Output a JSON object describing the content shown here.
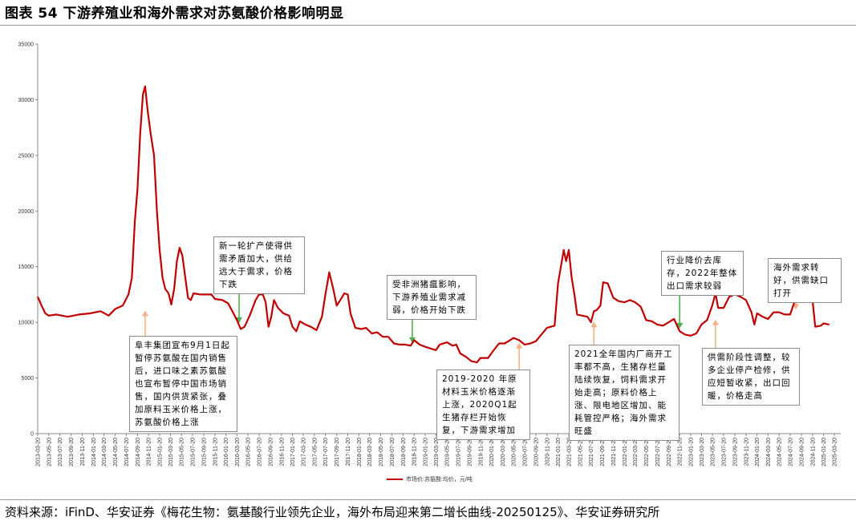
{
  "title": "图表 54 下游养殖业和海外需求对苏氨酸价格影响明显",
  "source": "资料来源：iFinD、华安证券《梅花生物：氨基酸行业领先企业，海外布局迎来第二增长曲线-20250125》、华安证券研究所",
  "chart_data": {
    "type": "line",
    "title": "",
    "xlabel": "",
    "ylabel": "",
    "ylim": [
      0,
      35000
    ],
    "yticks": [
      "0",
      "5000",
      "10000",
      "15000",
      "20000",
      "25000",
      "30000",
      "35000"
    ],
    "xticks": [
      "2013-03-20",
      "2013-05-20",
      "2013-07-20",
      "2013-09-20",
      "2013-11-20",
      "2014-01-20",
      "2014-03-20",
      "2014-05-20",
      "2014-07-20",
      "2014-09-20",
      "2014-11-20",
      "2015-01-20",
      "2015-03-20",
      "2015-05-20",
      "2015-07-20",
      "2015-09-20",
      "2015-11-20",
      "2016-01-20",
      "2016-03-20",
      "2016-05-20",
      "2016-07-20",
      "2016-09-20",
      "2016-11-20",
      "2017-01-20",
      "2017-03-20",
      "2017-05-20",
      "2017-07-20",
      "2017-09-20",
      "2017-11-20",
      "2018-01-20",
      "2018-03-20",
      "2018-05-20",
      "2018-07-20",
      "2018-09-20",
      "2018-11-20",
      "2019-01-20",
      "2019-03-20",
      "2019-05-20",
      "2019-07-20",
      "2019-09-20",
      "2019-11-20",
      "2020-01-20",
      "2020-03-20",
      "2020-05-20",
      "2020-07-20",
      "2020-09-20",
      "2020-11-20",
      "2021-01-20",
      "2021-03-20",
      "2021-05-20",
      "2021-07-20",
      "2021-09-20",
      "2021-11-20",
      "2022-01-20",
      "2022-03-20",
      "2022-05-20",
      "2022-07-20",
      "2022-09-20",
      "2022-11-20",
      "2023-01-20",
      "2023-03-20",
      "2023-05-20",
      "2023-07-20",
      "2023-09-20",
      "2023-11-20",
      "2024-01-20",
      "2024-03-20",
      "2024-05-20",
      "2024-07-20",
      "2024-09-20",
      "2024-11-20",
      "2025-01-20",
      "2025-03-20"
    ],
    "grid": false,
    "legend_position": "bottom",
    "series": [
      {
        "name": "市场价:苏氨酸:均价，元/吨",
        "color": "#c00000",
        "points": [
          [
            "2013-03-20",
            12300
          ],
          [
            "2013-04-10",
            11500
          ],
          [
            "2013-05-01",
            10800
          ],
          [
            "2013-05-20",
            10600
          ],
          [
            "2013-07-01",
            10700
          ],
          [
            "2013-09-01",
            10500
          ],
          [
            "2013-11-01",
            10700
          ],
          [
            "2014-01-01",
            10800
          ],
          [
            "2014-03-01",
            11000
          ],
          [
            "2014-04-15",
            10600
          ],
          [
            "2014-05-20",
            11200
          ],
          [
            "2014-07-01",
            11500
          ],
          [
            "2014-08-01",
            12500
          ],
          [
            "2014-08-20",
            14000
          ],
          [
            "2014-09-05",
            19000
          ],
          [
            "2014-09-20",
            22000
          ],
          [
            "2014-10-05",
            27000
          ],
          [
            "2014-10-20",
            30500
          ],
          [
            "2014-11-01",
            31200
          ],
          [
            "2014-11-15",
            29000
          ],
          [
            "2014-12-01",
            27000
          ],
          [
            "2014-12-20",
            25000
          ],
          [
            "2015-01-05",
            20000
          ],
          [
            "2015-01-20",
            16500
          ],
          [
            "2015-02-05",
            14000
          ],
          [
            "2015-02-20",
            13000
          ],
          [
            "2015-03-10",
            12600
          ],
          [
            "2015-03-25",
            11600
          ],
          [
            "2015-04-10",
            13000
          ],
          [
            "2015-04-25",
            15500
          ],
          [
            "2015-05-10",
            16700
          ],
          [
            "2015-05-25",
            16000
          ],
          [
            "2015-06-10",
            14000
          ],
          [
            "2015-06-25",
            12200
          ],
          [
            "2015-07-10",
            12000
          ],
          [
            "2015-07-25",
            12600
          ],
          [
            "2015-09-01",
            12500
          ],
          [
            "2015-11-01",
            12500
          ],
          [
            "2015-11-20",
            12100
          ],
          [
            "2016-01-01",
            12000
          ],
          [
            "2016-02-01",
            11700
          ],
          [
            "2016-03-01",
            10800
          ],
          [
            "2016-03-20",
            10200
          ],
          [
            "2016-04-10",
            9400
          ],
          [
            "2016-05-01",
            9600
          ],
          [
            "2016-06-01",
            10700
          ],
          [
            "2016-07-01",
            12000
          ],
          [
            "2016-07-20",
            12500
          ],
          [
            "2016-08-10",
            12500
          ],
          [
            "2016-08-25",
            11800
          ],
          [
            "2016-09-10",
            9600
          ],
          [
            "2016-09-25",
            10500
          ],
          [
            "2016-10-10",
            12000
          ],
          [
            "2016-11-01",
            11300
          ],
          [
            "2016-12-01",
            10800
          ],
          [
            "2017-01-01",
            10600
          ],
          [
            "2017-01-20",
            9600
          ],
          [
            "2017-02-10",
            9200
          ],
          [
            "2017-03-01",
            10100
          ],
          [
            "2017-04-01",
            9800
          ],
          [
            "2017-05-01",
            9600
          ],
          [
            "2017-06-01",
            9300
          ],
          [
            "2017-07-01",
            10500
          ],
          [
            "2017-07-20",
            12500
          ],
          [
            "2017-08-10",
            14500
          ],
          [
            "2017-09-01",
            13000
          ],
          [
            "2017-09-20",
            11500
          ],
          [
            "2017-10-10",
            12000
          ],
          [
            "2017-11-01",
            12600
          ],
          [
            "2017-11-20",
            12500
          ],
          [
            "2017-12-05",
            10800
          ],
          [
            "2018-01-01",
            9500
          ],
          [
            "2018-02-01",
            9400
          ],
          [
            "2018-03-01",
            9500
          ],
          [
            "2018-04-01",
            9000
          ],
          [
            "2018-05-01",
            9100
          ],
          [
            "2018-06-01",
            8700
          ],
          [
            "2018-07-01",
            8700
          ],
          [
            "2018-08-01",
            8100
          ],
          [
            "2018-09-01",
            8000
          ],
          [
            "2018-10-01",
            8000
          ],
          [
            "2018-11-01",
            7900
          ],
          [
            "2018-11-20",
            8400
          ],
          [
            "2018-12-20",
            8000
          ],
          [
            "2019-01-20",
            7800
          ],
          [
            "2019-03-20",
            7500
          ],
          [
            "2019-04-10",
            8000
          ],
          [
            "2019-05-20",
            8200
          ],
          [
            "2019-06-20",
            7900
          ],
          [
            "2019-07-10",
            8000
          ],
          [
            "2019-08-01",
            7200
          ],
          [
            "2019-09-01",
            6900
          ],
          [
            "2019-10-01",
            6500
          ],
          [
            "2019-11-01",
            6400
          ],
          [
            "2019-11-20",
            6800
          ],
          [
            "2020-01-01",
            6800
          ],
          [
            "2020-02-01",
            7500
          ],
          [
            "2020-03-01",
            8100
          ],
          [
            "2020-04-01",
            8100
          ],
          [
            "2020-05-01",
            8400
          ],
          [
            "2020-05-20",
            8600
          ],
          [
            "2020-06-20",
            8400
          ],
          [
            "2020-07-20",
            8000
          ],
          [
            "2020-08-20",
            8100
          ],
          [
            "2020-09-20",
            8300
          ],
          [
            "2020-10-20",
            8900
          ],
          [
            "2020-11-20",
            9500
          ],
          [
            "2021-01-01",
            9700
          ],
          [
            "2021-01-20",
            13500
          ],
          [
            "2021-02-20",
            16500
          ],
          [
            "2021-03-05",
            15500
          ],
          [
            "2021-03-20",
            16500
          ],
          [
            "2021-04-05",
            14000
          ],
          [
            "2021-04-20",
            12500
          ],
          [
            "2021-05-05",
            10700
          ],
          [
            "2021-06-01",
            10600
          ],
          [
            "2021-07-01",
            10500
          ],
          [
            "2021-07-20",
            10000
          ],
          [
            "2021-08-05",
            11000
          ],
          [
            "2021-08-20",
            11100
          ],
          [
            "2021-09-10",
            11500
          ],
          [
            "2021-09-25",
            13600
          ],
          [
            "2021-10-20",
            13500
          ],
          [
            "2021-11-20",
            12200
          ],
          [
            "2021-12-20",
            11900
          ],
          [
            "2022-01-20",
            11800
          ],
          [
            "2022-02-20",
            12000
          ],
          [
            "2022-03-20",
            11800
          ],
          [
            "2022-04-20",
            11400
          ],
          [
            "2022-05-20",
            10200
          ],
          [
            "2022-06-20",
            10100
          ],
          [
            "2022-07-20",
            9800
          ],
          [
            "2022-08-20",
            9700
          ],
          [
            "2022-09-20",
            10000
          ],
          [
            "2022-10-20",
            10300
          ],
          [
            "2022-11-20",
            9200
          ],
          [
            "2022-12-20",
            8900
          ],
          [
            "2023-01-20",
            8800
          ],
          [
            "2023-02-20",
            9000
          ],
          [
            "2023-03-20",
            9800
          ],
          [
            "2023-04-20",
            10200
          ],
          [
            "2023-05-20",
            11600
          ],
          [
            "2023-06-05",
            12600
          ],
          [
            "2023-06-20",
            11300
          ],
          [
            "2023-07-20",
            11300
          ],
          [
            "2023-08-20",
            12300
          ],
          [
            "2023-09-20",
            12500
          ],
          [
            "2023-10-20",
            12300
          ],
          [
            "2023-11-20",
            12000
          ],
          [
            "2023-12-20",
            10900
          ],
          [
            "2024-01-05",
            9800
          ],
          [
            "2024-01-20",
            10800
          ],
          [
            "2024-02-20",
            10500
          ],
          [
            "2024-03-20",
            10300
          ],
          [
            "2024-04-20",
            10900
          ],
          [
            "2024-05-20",
            10900
          ],
          [
            "2024-06-20",
            10700
          ],
          [
            "2024-07-20",
            10700
          ],
          [
            "2024-08-20",
            12200
          ],
          [
            "2024-09-20",
            12300
          ],
          [
            "2024-10-20",
            12400
          ],
          [
            "2024-11-20",
            12000
          ],
          [
            "2024-12-05",
            9600
          ],
          [
            "2025-01-05",
            9700
          ],
          [
            "2025-01-20",
            9900
          ],
          [
            "2025-02-20",
            9800
          ]
        ]
      }
    ],
    "annotations": [
      {
        "text": "新一轮扩产使得供需矛盾加大，供给远大于需求，价格下跌",
        "color": "#4caf50",
        "arrow_to": [
          "2016-04-01",
          9800
        ]
      },
      {
        "text": "阜丰集团宣布9月1日起暂停苏氨酸在国内销售后，进口味之素苏氨酸也宣布暂停中国市场销售，国内供货紧张，叠加原料玉米价格上涨，苏氨酸价格上涨",
        "color": "#f4b183",
        "arrow_to": [
          "2014-11-01",
          11200
        ]
      },
      {
        "text": "受非洲猪瘟影响，下游养殖业需求减弱，价格开始下跌",
        "color": "#4caf50",
        "arrow_to": [
          "2018-11-10",
          8000
        ]
      },
      {
        "text": "2019-2020 年原材料玉米价格逐渐上涨，2020Q1起生猪存栏开始恢复，下游需求增加",
        "color": "#f4b183",
        "arrow_to": [
          "2020-06-20",
          8300
        ]
      },
      {
        "text": "2021全年国内厂商开工率都不高，生猪存栏量陆续恢复，饲料需求开始走高；原料价格上涨、限电地区增加、能耗管控严格；海外需求旺盛",
        "color": "#f4b183",
        "arrow_to": [
          "2021-08-05",
          10200
        ]
      },
      {
        "text": "行业降价去库存，2022年整体出口需求较弱",
        "color": "#4caf50",
        "arrow_to": [
          "2022-11-20",
          9300
        ]
      },
      {
        "text": "供需阶段性调整，较多企业停产检修，供应短暂收紧，出口回暖，价格走高",
        "color": "#f4b183",
        "arrow_to": [
          "2023-06-05",
          10400
        ]
      },
      {
        "text": "海外需求转好，供需缺口打开",
        "color": "#f4b183",
        "arrow_to": [
          "2024-08-20",
          11000
        ]
      }
    ]
  }
}
